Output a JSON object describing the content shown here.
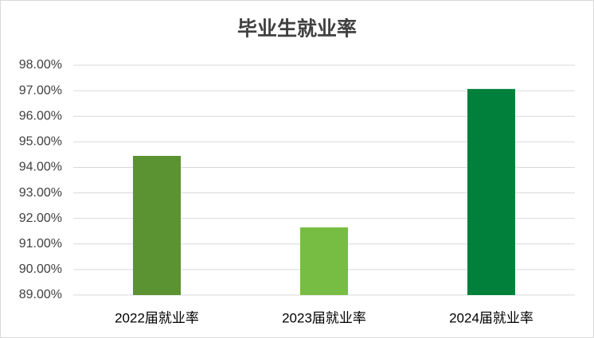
{
  "chart_data": {
    "type": "bar",
    "title": "毕业生就业率",
    "categories": [
      "2022届就业率",
      "2023届就业率",
      "2024届就业率"
    ],
    "values": [
      94.45,
      91.65,
      97.07
    ],
    "colors": [
      "#5b9232",
      "#77bd43",
      "#00803a"
    ],
    "ylim": [
      89,
      98
    ],
    "yticks": [
      {
        "value": 89,
        "label": "89.00%"
      },
      {
        "value": 90,
        "label": "90.00%"
      },
      {
        "value": 91,
        "label": "91.00%"
      },
      {
        "value": 92,
        "label": "92.00%"
      },
      {
        "value": 93,
        "label": "93.00%"
      },
      {
        "value": 94,
        "label": "94.00%"
      },
      {
        "value": 95,
        "label": "95.00%"
      },
      {
        "value": 96,
        "label": "96.00%"
      },
      {
        "value": 97,
        "label": "97.00%"
      },
      {
        "value": 98,
        "label": "98.00%"
      }
    ],
    "grid": true
  }
}
